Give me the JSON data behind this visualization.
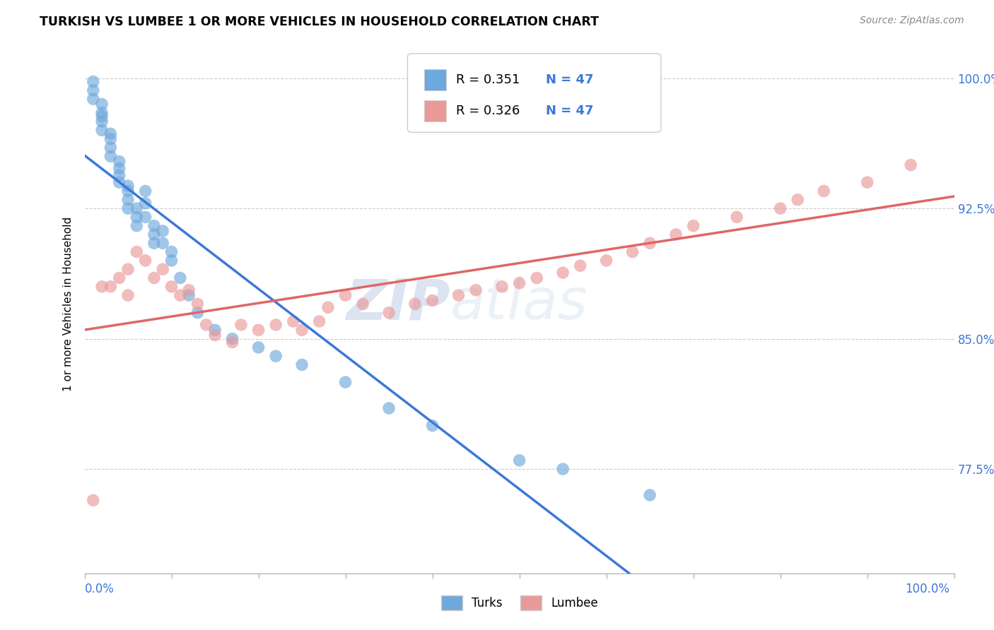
{
  "title": "TURKISH VS LUMBEE 1 OR MORE VEHICLES IN HOUSEHOLD CORRELATION CHART",
  "source_text": "Source: ZipAtlas.com",
  "ylabel": "1 or more Vehicles in Household",
  "yaxis_values": [
    1.0,
    0.925,
    0.85,
    0.775
  ],
  "yaxis_labels": [
    "100.0%",
    "92.5%",
    "85.0%",
    "77.5%"
  ],
  "xlim": [
    0.0,
    1.0
  ],
  "ylim": [
    0.715,
    1.025
  ],
  "legend_r_turks": "R = 0.351",
  "legend_n_turks": "N = 47",
  "legend_r_lumbee": "R = 0.326",
  "legend_n_lumbee": "N = 47",
  "turks_color": "#6fa8dc",
  "lumbee_color": "#ea9999",
  "turks_line_color": "#3c78d8",
  "lumbee_line_color": "#e06666",
  "background_color": "#ffffff",
  "watermark_color": "#d0dff0",
  "turks_x": [
    0.01,
    0.01,
    0.01,
    0.02,
    0.02,
    0.02,
    0.02,
    0.02,
    0.03,
    0.03,
    0.03,
    0.03,
    0.04,
    0.04,
    0.04,
    0.04,
    0.05,
    0.05,
    0.05,
    0.05,
    0.06,
    0.06,
    0.06,
    0.07,
    0.07,
    0.07,
    0.08,
    0.08,
    0.08,
    0.09,
    0.09,
    0.1,
    0.1,
    0.11,
    0.12,
    0.13,
    0.15,
    0.17,
    0.2,
    0.22,
    0.25,
    0.3,
    0.35,
    0.4,
    0.5,
    0.55,
    0.65
  ],
  "turks_y": [
    0.998,
    0.993,
    0.988,
    0.985,
    0.98,
    0.978,
    0.975,
    0.97,
    0.968,
    0.965,
    0.96,
    0.955,
    0.952,
    0.948,
    0.944,
    0.94,
    0.938,
    0.935,
    0.93,
    0.925,
    0.925,
    0.92,
    0.915,
    0.935,
    0.928,
    0.92,
    0.915,
    0.91,
    0.905,
    0.912,
    0.905,
    0.9,
    0.895,
    0.885,
    0.875,
    0.865,
    0.855,
    0.85,
    0.845,
    0.84,
    0.835,
    0.825,
    0.81,
    0.8,
    0.78,
    0.775,
    0.76
  ],
  "lumbee_x": [
    0.01,
    0.02,
    0.03,
    0.04,
    0.05,
    0.05,
    0.06,
    0.07,
    0.08,
    0.09,
    0.1,
    0.11,
    0.12,
    0.13,
    0.14,
    0.15,
    0.17,
    0.18,
    0.2,
    0.22,
    0.24,
    0.25,
    0.27,
    0.28,
    0.3,
    0.32,
    0.35,
    0.38,
    0.4,
    0.43,
    0.45,
    0.48,
    0.5,
    0.52,
    0.55,
    0.57,
    0.6,
    0.63,
    0.65,
    0.68,
    0.7,
    0.75,
    0.8,
    0.82,
    0.85,
    0.9,
    0.95
  ],
  "lumbee_y": [
    0.757,
    0.88,
    0.88,
    0.885,
    0.875,
    0.89,
    0.9,
    0.895,
    0.885,
    0.89,
    0.88,
    0.875,
    0.878,
    0.87,
    0.858,
    0.852,
    0.848,
    0.858,
    0.855,
    0.858,
    0.86,
    0.855,
    0.86,
    0.868,
    0.875,
    0.87,
    0.865,
    0.87,
    0.872,
    0.875,
    0.878,
    0.88,
    0.882,
    0.885,
    0.888,
    0.892,
    0.895,
    0.9,
    0.905,
    0.91,
    0.915,
    0.92,
    0.925,
    0.93,
    0.935,
    0.94,
    0.95
  ]
}
